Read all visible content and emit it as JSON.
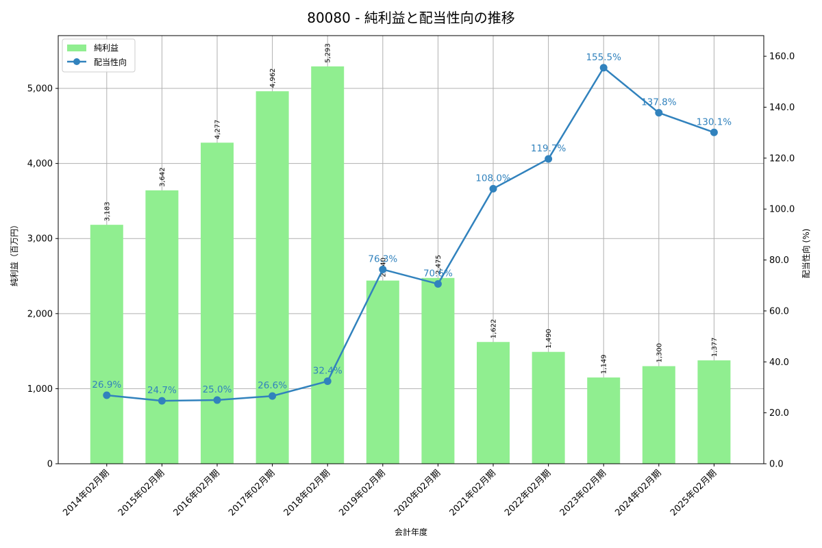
{
  "chart_data": {
    "type": "bar+line",
    "title": "80080 - 純利益と配当性向の推移",
    "xlabel": "会計年度",
    "ylabel": "純利益（百万円）",
    "y2label": "配当性向 (%)",
    "categories": [
      "2014年02月期",
      "2015年02月期",
      "2016年02月期",
      "2017年02月期",
      "2018年02月期",
      "2019年02月期",
      "2020年02月期",
      "2021年02月期",
      "2022年02月期",
      "2023年02月期",
      "2024年02月期",
      "2025年02月期"
    ],
    "series": [
      {
        "name": "純利益",
        "type": "bar",
        "axis": "left",
        "color": "#90ee90",
        "values": [
          3183,
          3642,
          4277,
          4962,
          5293,
          2440,
          2475,
          1622,
          1490,
          1149,
          1300,
          1377
        ],
        "labels": [
          "3,183",
          "3,642",
          "4,277",
          "4,962",
          "5,293",
          "2,440",
          "2,475",
          "1,622",
          "1,490",
          "1,149",
          "1,300",
          "1,377"
        ]
      },
      {
        "name": "配当性向",
        "type": "line",
        "axis": "right",
        "color": "#3182bd",
        "values": [
          26.9,
          24.7,
          25.0,
          26.6,
          32.4,
          76.3,
          70.6,
          108.0,
          119.7,
          155.5,
          137.8,
          130.1
        ],
        "labels": [
          "26.9%",
          "24.7%",
          "25.0%",
          "26.6%",
          "32.4%",
          "76.3%",
          "70.6%",
          "108.0%",
          "119.7%",
          "155.5%",
          "137.8%",
          "130.1%"
        ]
      }
    ],
    "ylim": [
      0,
      5703
    ],
    "y2lim": [
      0,
      168.1
    ],
    "yticks": [
      0,
      1000,
      2000,
      3000,
      4000,
      5000
    ],
    "ytick_labels": [
      "0",
      "1,000",
      "2,000",
      "3,000",
      "4,000",
      "5,000"
    ],
    "y2ticks": [
      0,
      20,
      40,
      60,
      80,
      100,
      120,
      140,
      160
    ],
    "y2tick_labels": [
      "0.0",
      "20.0",
      "40.0",
      "60.0",
      "80.0",
      "100.0",
      "120.0",
      "140.0",
      "160.0"
    ],
    "grid": true,
    "legend": {
      "position": "upper left",
      "entries": [
        "純利益",
        "配当性向"
      ]
    }
  }
}
